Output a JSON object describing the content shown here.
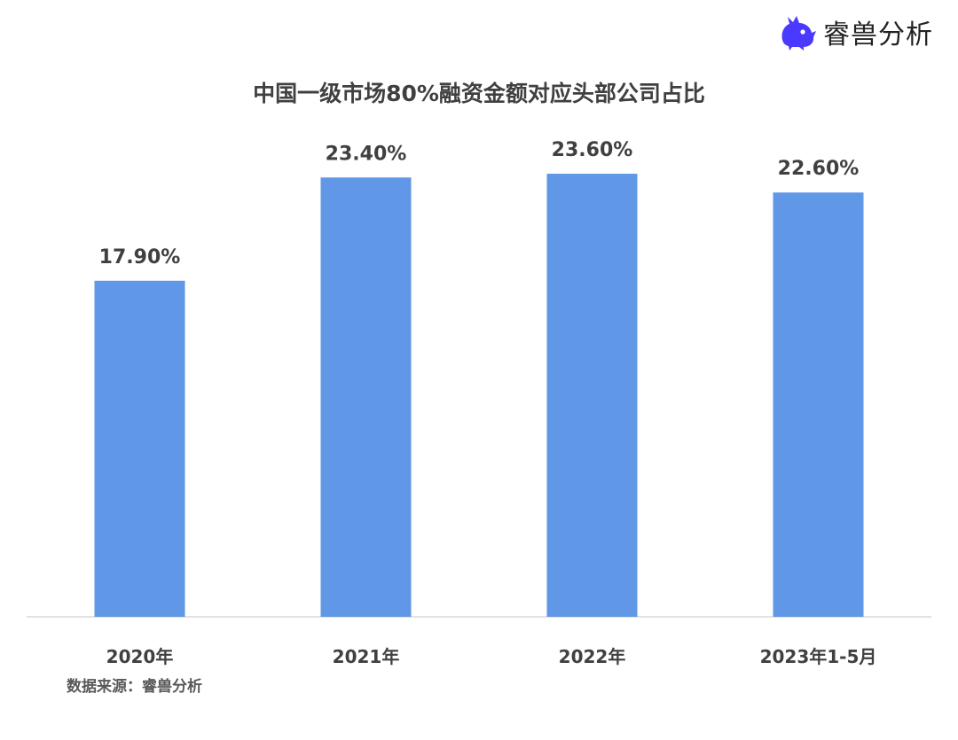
{
  "brand": {
    "name": "睿兽分析",
    "icon": "beast-logo-icon",
    "color": "#4a3aff"
  },
  "source_text": "数据来源：睿兽分析",
  "colors": {
    "bar": "#6097e6",
    "axis": "#d9d9d9",
    "label": "#404040"
  },
  "chart_data": {
    "type": "bar",
    "title": "中国一级市场80%融资金额对应头部公司占比",
    "categories": [
      "2020年",
      "2021年",
      "2022年",
      "2023年1-5月"
    ],
    "values": [
      17.9,
      23.4,
      23.6,
      22.6
    ],
    "data_labels": [
      "17.90%",
      "23.40%",
      "23.60%",
      "22.60%"
    ],
    "xlabel": "",
    "ylabel": "",
    "ylim": [
      0,
      27
    ],
    "grid": false,
    "legend": "none"
  }
}
